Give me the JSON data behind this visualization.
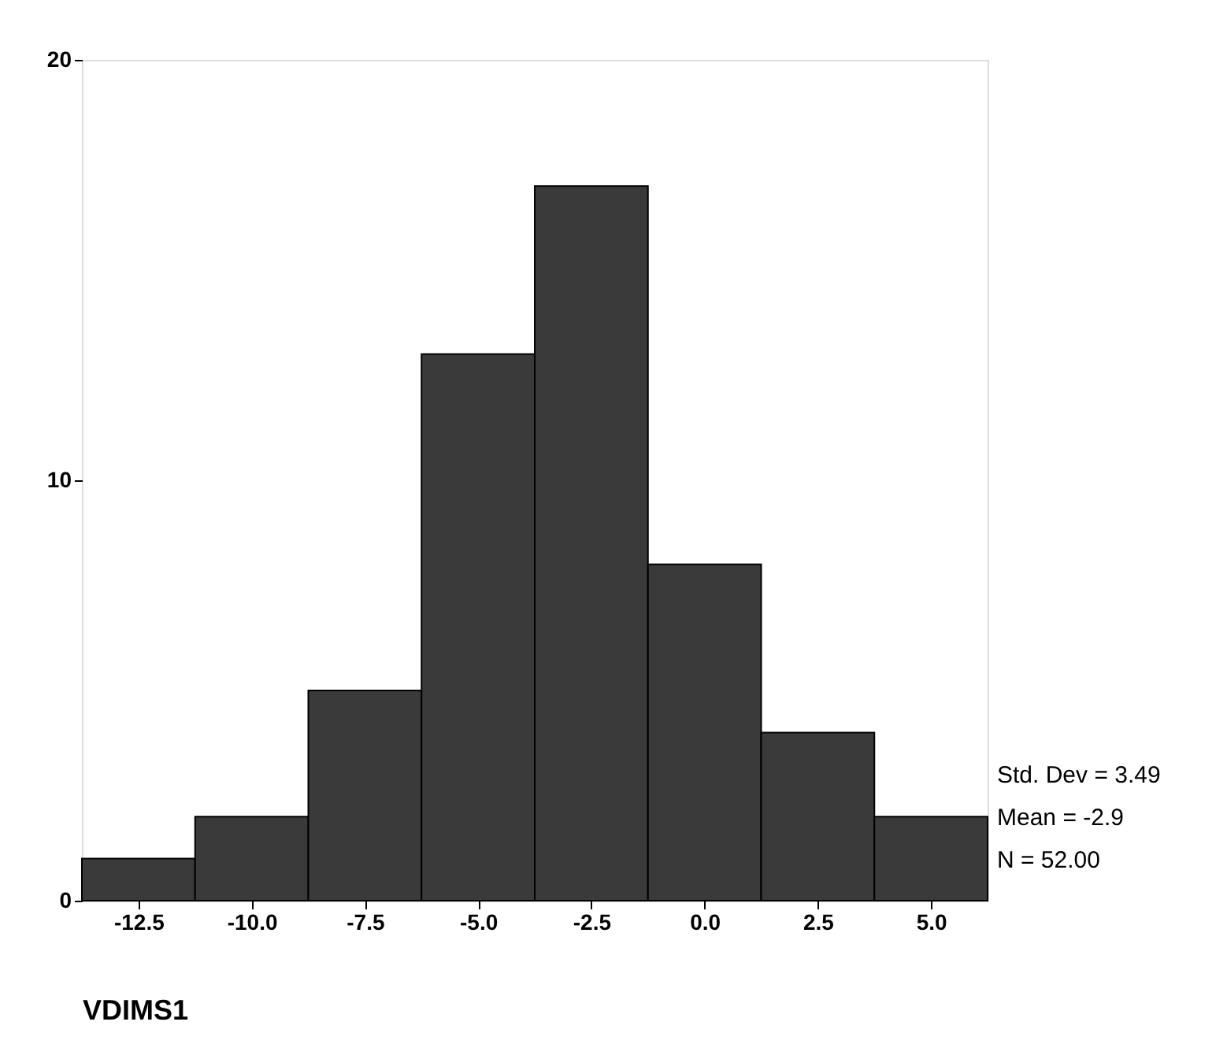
{
  "chart_data": {
    "type": "histogram",
    "xlabel": "VDIMS1",
    "bins": [
      -13.75,
      -11.25,
      -8.75,
      -6.25,
      -3.75,
      -1.25,
      1.25,
      3.75,
      6.25
    ],
    "values": [
      1,
      2,
      5,
      13,
      17,
      8,
      4,
      2
    ],
    "color": "#3a3a3a",
    "xlim": [
      -13.75,
      6.25
    ],
    "xticks": [
      {
        "value": -12.5,
        "label": "-12.5"
      },
      {
        "value": -10,
        "label": "-10.0"
      },
      {
        "value": -7.5,
        "label": "-7.5"
      },
      {
        "value": -5,
        "label": "-5.0"
      },
      {
        "value": -2.5,
        "label": "-2.5"
      },
      {
        "value": 0,
        "label": "0.0"
      },
      {
        "value": 2.5,
        "label": "2.5"
      },
      {
        "value": 5,
        "label": "5.0"
      }
    ],
    "ylim": [
      0,
      20
    ],
    "yticks": [
      0,
      10,
      20
    ],
    "grid": false,
    "annotations": [
      "Std. Dev = 3.49",
      "Mean = -2.9",
      "N = 52.00"
    ]
  }
}
